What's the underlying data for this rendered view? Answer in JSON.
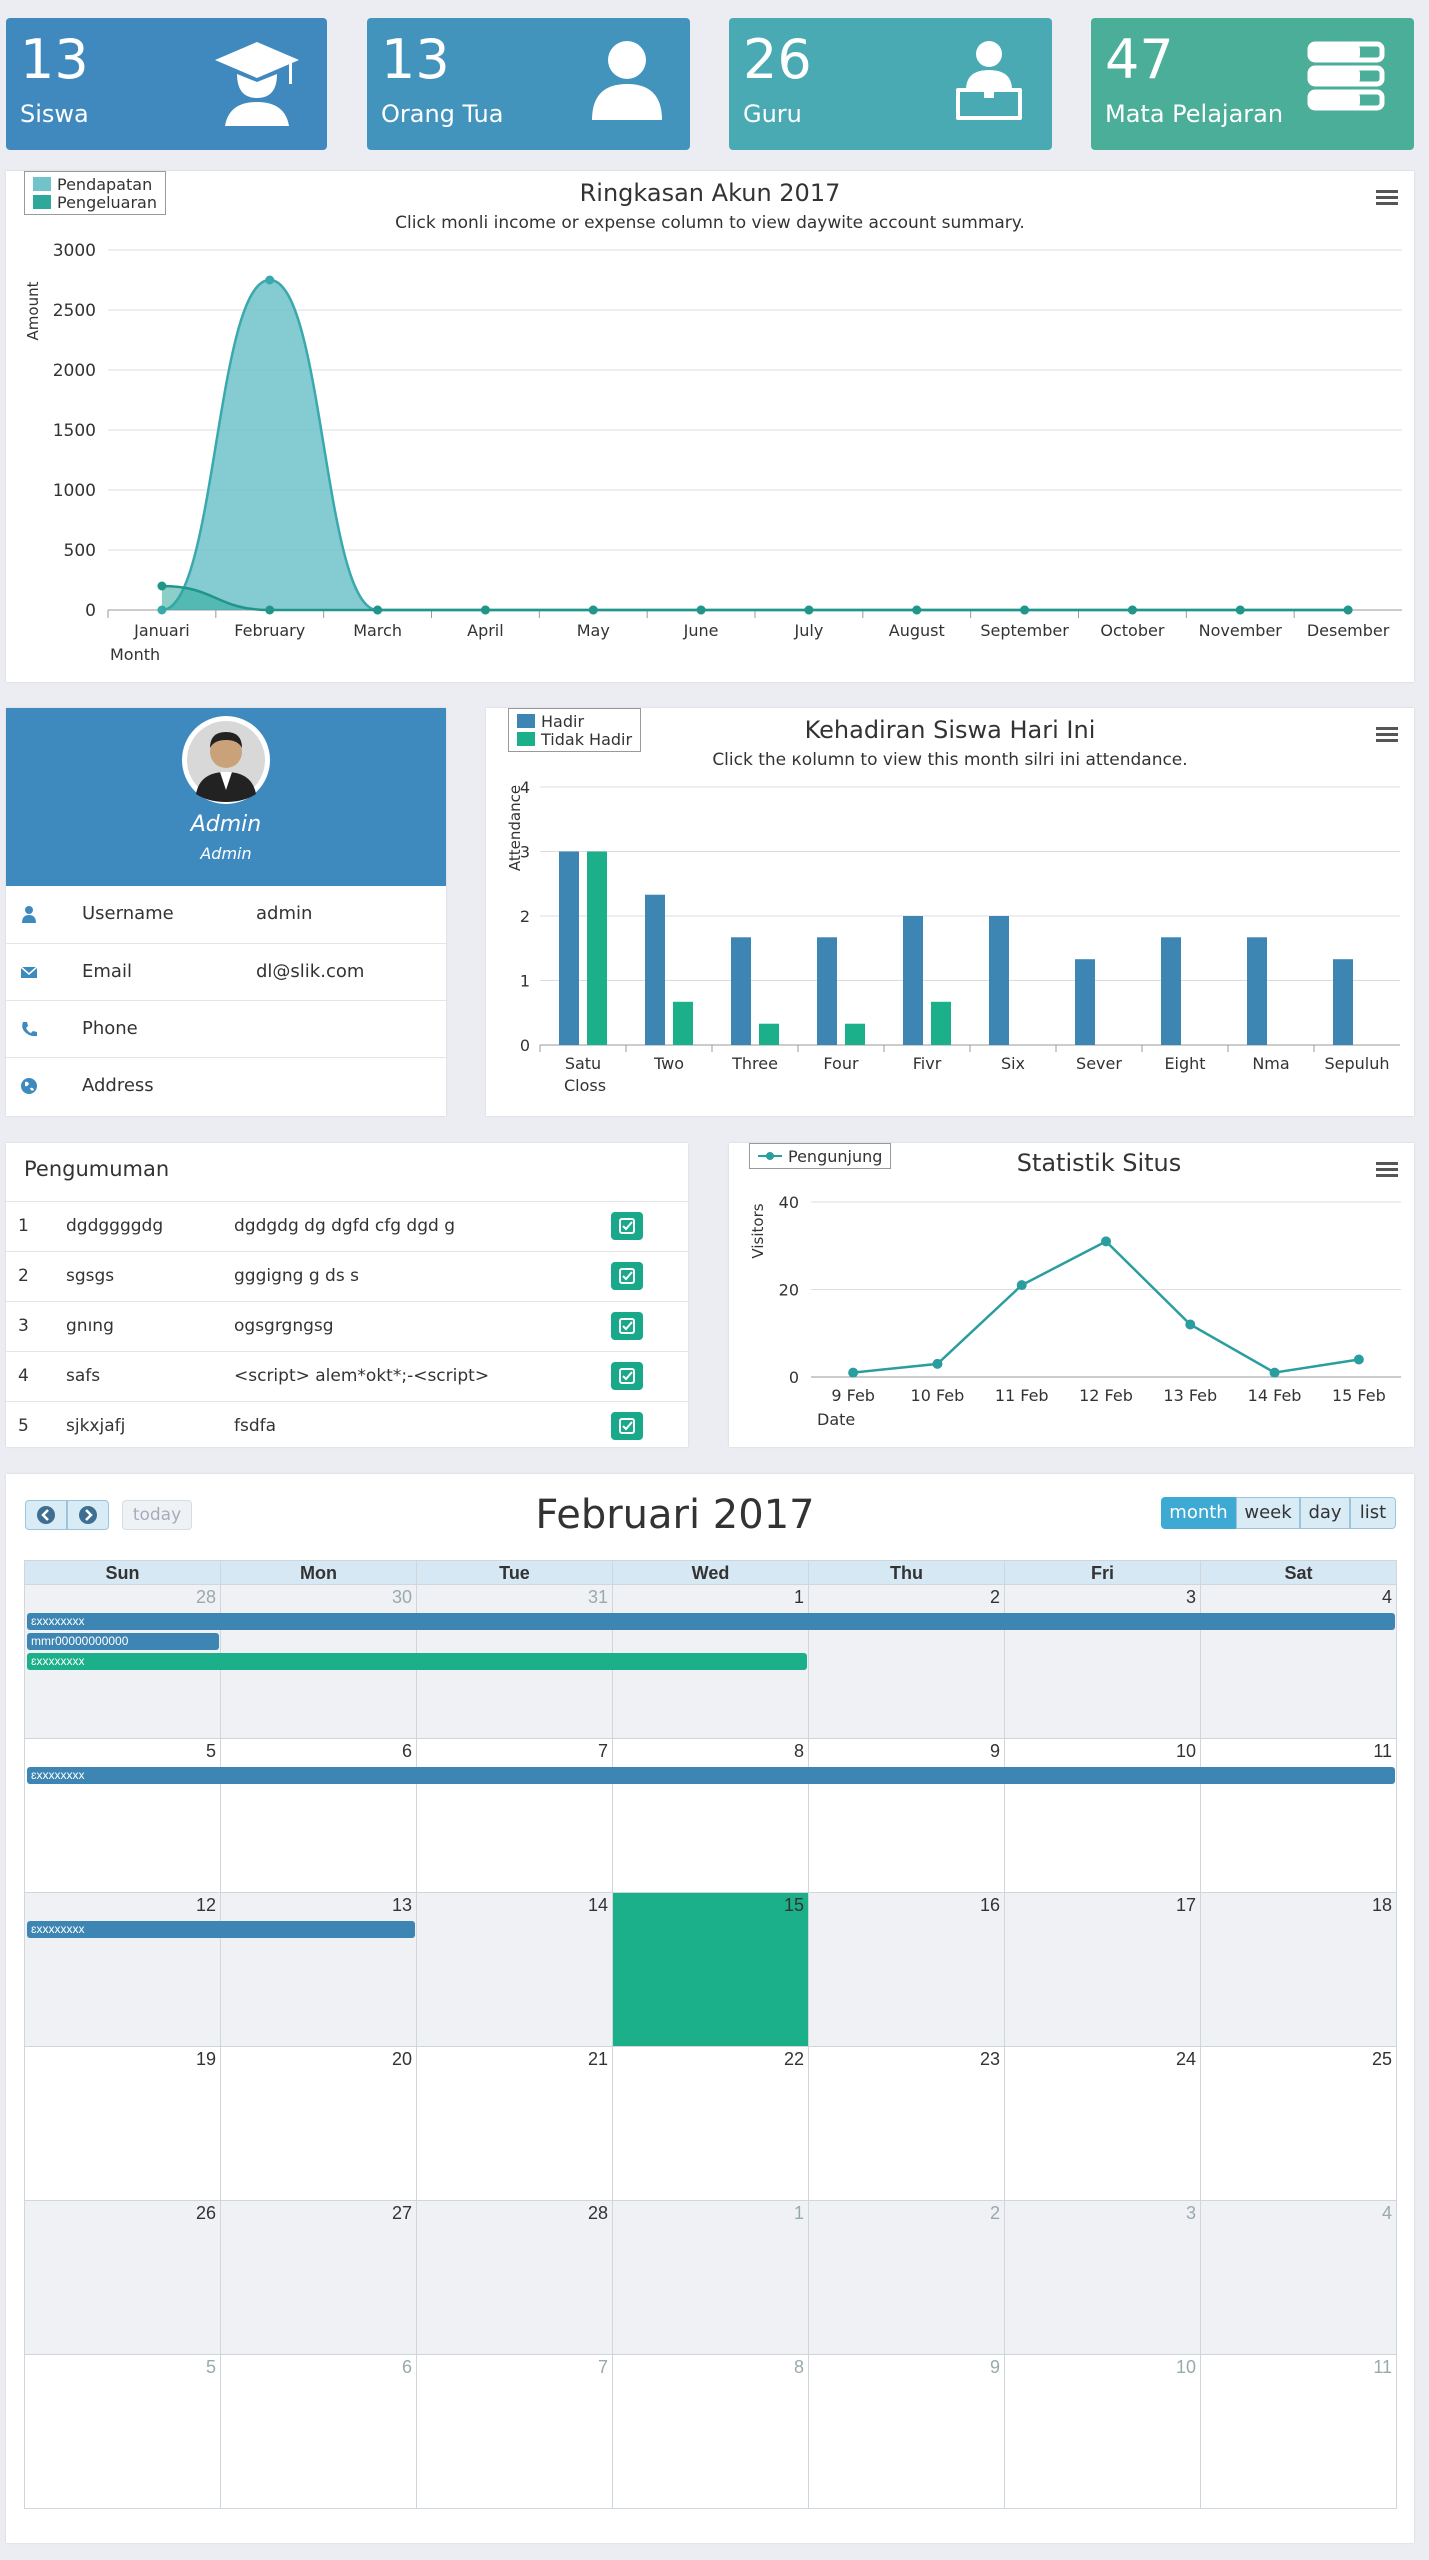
{
  "tiles": [
    {
      "count": "13",
      "label": "Siswa",
      "icon": "graduation-cap-icon",
      "color": "#4089be"
    },
    {
      "count": "13",
      "label": "Orang Tua",
      "icon": "user-icon",
      "color": "#4394bd"
    },
    {
      "count": "26",
      "label": "Guru",
      "icon": "teacher-icon",
      "color": "#49aab3"
    },
    {
      "count": "47",
      "label": "Mata Pelajaran",
      "icon": "books-icon",
      "color": "#4aae98"
    }
  ],
  "account_chart": {
    "title": "Ringkasan Akun 2017",
    "subtitle": "Click monli income or expense column to view daywite account summary.",
    "legend": [
      "Pendapatan",
      "Pengeluaran"
    ]
  },
  "profile": {
    "name": "Admin",
    "role": "Admin",
    "rows": [
      {
        "label": "Username",
        "value": "admin",
        "icon": "user-icon"
      },
      {
        "label": "Email",
        "value": "dl@slik.com",
        "icon": "envelope-icon"
      },
      {
        "label": "Phone",
        "value": "",
        "icon": "phone-icon"
      },
      {
        "label": "Address",
        "value": "",
        "icon": "globe-icon"
      }
    ]
  },
  "attendance_chart": {
    "title": "Kehadiran Siswa Hari Ini",
    "subtitle": "Click the кolumn to view this month silri ini attendance.",
    "legend": [
      "Hadir",
      "Tidak Hadir"
    ]
  },
  "announcements": {
    "title": "Pengumuman",
    "rows": [
      {
        "no": "1",
        "title": "dgdggggdg",
        "content": "dgdgdg dg dgfd cfg dgd g"
      },
      {
        "no": "2",
        "title": "sgsgs",
        "content": "gggigng g ds s"
      },
      {
        "no": "3",
        "title": "gnıng",
        "content": "ogsgrgngsg"
      },
      {
        "no": "4",
        "title": "safs",
        "content": "<script> alem*okt*;-<script>"
      },
      {
        "no": "5",
        "title": "sjkxjafj",
        "content": "fsdfa"
      }
    ]
  },
  "stats_chart": {
    "title": "Statistik Situs",
    "legend": "Pengunjung"
  },
  "calendar": {
    "title": "Februari 2017",
    "today_label": "today",
    "views": [
      "month",
      "week",
      "day",
      "list"
    ],
    "active_view": "month",
    "day_headers": [
      "Sun",
      "Mon",
      "Tue",
      "Wed",
      "Thu",
      "Fri",
      "Sat"
    ],
    "weeks": [
      [
        "28",
        "30",
        "31",
        "1",
        "2",
        "3",
        "4"
      ],
      [
        "5",
        "6",
        "7",
        "8",
        "9",
        "10",
        "11"
      ],
      [
        "12",
        "13",
        "14",
        "15",
        "16",
        "17",
        "18"
      ],
      [
        "19",
        "20",
        "21",
        "22",
        "23",
        "24",
        "25"
      ],
      [
        "26",
        "27",
        "28",
        "1",
        "2",
        "3",
        "4"
      ],
      [
        "5",
        "6",
        "7",
        "8",
        "9",
        "10",
        "11"
      ]
    ],
    "events": [
      {
        "label": "ɛxxxxxxxx",
        "week": 0,
        "start": 0,
        "span": 7,
        "lane": 0,
        "color": "blue"
      },
      {
        "label": "mmr00000000000",
        "week": 0,
        "start": 0,
        "span": 1,
        "lane": 1,
        "color": "blue"
      },
      {
        "label": "ɛxxxxxxxx",
        "week": 0,
        "start": 0,
        "span": 4,
        "lane": 2,
        "color": "green"
      },
      {
        "label": "ɛxxxxxxxx",
        "week": 1,
        "start": 0,
        "span": 7,
        "lane": 0,
        "color": "blue"
      },
      {
        "label": "ɛxxxxxxxx",
        "week": 2,
        "start": 0,
        "span": 2,
        "lane": 0,
        "color": "blue"
      }
    ]
  },
  "chart_data": [
    {
      "type": "area",
      "title": "Ringkasan Akun 2017",
      "xlabel": "Month",
      "ylabel": "Amount",
      "categories": [
        "Januari",
        "February",
        "March",
        "April",
        "May",
        "June",
        "July",
        "August",
        "September",
        "October",
        "November",
        "Desember"
      ],
      "series": [
        {
          "name": "Pendapatan",
          "values": [
            0,
            2750,
            0,
            0,
            0,
            0,
            0,
            0,
            0,
            0,
            0,
            0
          ],
          "color": "#6fc3c9"
        },
        {
          "name": "Pengeluaran",
          "values": [
            200,
            0,
            0,
            0,
            0,
            0,
            0,
            0,
            0,
            0,
            0,
            0
          ],
          "color": "#2ea89a"
        }
      ],
      "yticks": [
        0,
        500,
        1000,
        1500,
        2000,
        2500,
        3000
      ],
      "ylim": [
        0,
        3000
      ],
      "legend_position": "top-left"
    },
    {
      "type": "bar",
      "title": "Kehadiran Siswa Hari Ini",
      "xlabel": "Closs",
      "ylabel": "Attendance",
      "categories": [
        "Satu",
        "Two",
        "Three",
        "Four",
        "Fivr",
        "Six",
        "Sever",
        "Eight",
        "Nma",
        "Sepuluh"
      ],
      "series": [
        {
          "name": "Hadir",
          "values": [
            3,
            2.33,
            1.67,
            1.67,
            2,
            2,
            1.33,
            1.67,
            1.67,
            1.33
          ],
          "color": "#3d86b4"
        },
        {
          "name": "Tidak Hadir",
          "values": [
            3,
            0.67,
            0.33,
            0.33,
            0.67,
            0,
            0,
            0,
            0,
            0
          ],
          "color": "#1bb08a"
        }
      ],
      "yticks": [
        0,
        1,
        2,
        3,
        4
      ],
      "ylim": [
        0,
        4
      ],
      "legend_position": "top-left"
    },
    {
      "type": "line",
      "title": "Statistik Situs",
      "xlabel": "Date",
      "ylabel": "Visitors",
      "categories": [
        "9 Feb",
        "10 Feb",
        "11 Feb",
        "12 Feb",
        "13 Feb",
        "14 Feb",
        "15 Feb"
      ],
      "series": [
        {
          "name": "Pengunjung",
          "values": [
            1,
            3,
            21,
            31,
            12,
            1,
            4
          ],
          "color": "#2a9d9e"
        }
      ],
      "yticks": [
        0,
        20,
        40
      ],
      "ylim": [
        0,
        40
      ],
      "legend_position": "top-left"
    }
  ]
}
